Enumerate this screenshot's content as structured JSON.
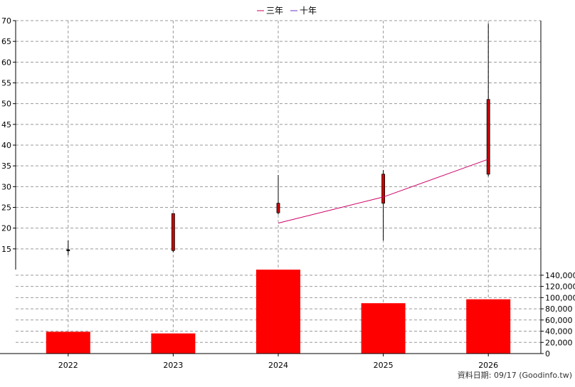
{
  "legend": {
    "items": [
      {
        "label": "三年",
        "color": "#cc0066"
      },
      {
        "label": "十年",
        "color": "#6633cc"
      }
    ]
  },
  "footer": {
    "data_date": "資料日期: 09/17  (Goodinfo.tw)"
  },
  "chart_data": {
    "type": "candlestick_with_volume",
    "categories": [
      "2022",
      "2023",
      "2024",
      "2025",
      "2026"
    ],
    "price_axis": {
      "ylim": [
        10,
        70
      ],
      "ticks": [
        15,
        20,
        25,
        30,
        35,
        40,
        45,
        50,
        55,
        60,
        65,
        70
      ]
    },
    "volume_axis": {
      "ylim": [
        0,
        150000
      ],
      "ticks": [
        0,
        20000,
        40000,
        60000,
        80000,
        100000,
        120000,
        140000
      ],
      "tick_labels": [
        "0",
        "20,000",
        "40,000",
        "60,000",
        "80,000",
        "100,000",
        "120,000",
        "140,000"
      ]
    },
    "candles": [
      {
        "x": "2022",
        "open": 14.8,
        "close": 14.6,
        "high": 17.0,
        "low": 13.5
      },
      {
        "x": "2023",
        "open": 14.6,
        "close": 23.5,
        "high": 23.6,
        "low": 14.2
      },
      {
        "x": "2024",
        "open": 23.7,
        "close": 26.0,
        "high": 32.8,
        "low": 23.3
      },
      {
        "x": "2025",
        "open": 26.0,
        "close": 33.0,
        "high": 34.0,
        "low": 17.0
      },
      {
        "x": "2026",
        "open": 33.0,
        "close": 51.0,
        "high": 69.3,
        "low": 32.5
      }
    ],
    "series": [
      {
        "name": "三年",
        "color": "#cc0066",
        "points": [
          {
            "x": "2024",
            "y": 21.2
          },
          {
            "x": "2025",
            "y": 27.5
          },
          {
            "x": "2026",
            "y": 36.6
          }
        ]
      },
      {
        "name": "十年",
        "color": "#6633cc",
        "points": []
      }
    ],
    "volume": [
      39000,
      36000,
      155000,
      90000,
      97000
    ],
    "grid": true,
    "legend_position": "top-center"
  }
}
